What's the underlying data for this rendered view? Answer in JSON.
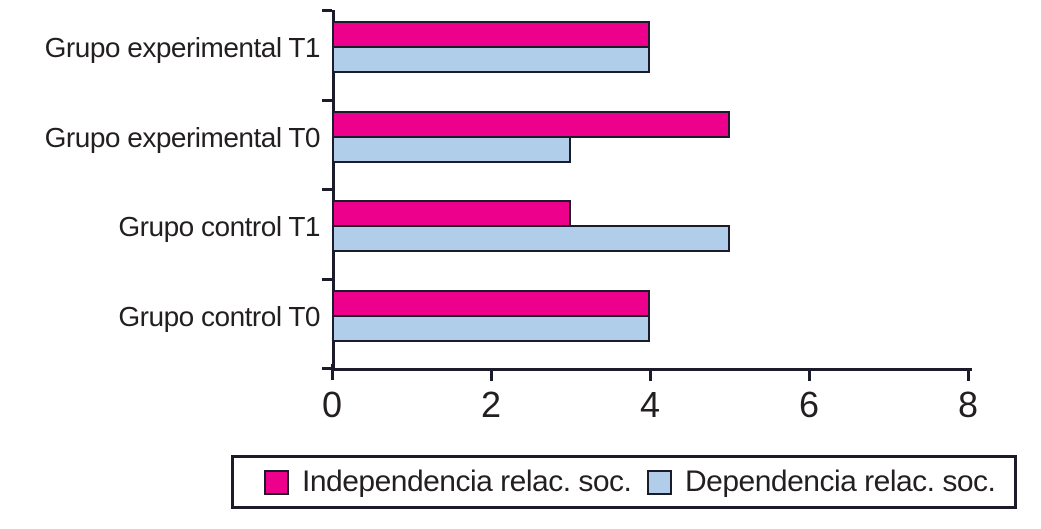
{
  "chart_data": {
    "type": "bar",
    "orientation": "horizontal",
    "title": "",
    "xlabel": "",
    "ylabel": "",
    "categories": [
      "Grupo experimental T1",
      "Grupo experimental T0",
      "Grupo control T1",
      "Grupo control T0"
    ],
    "series": [
      {
        "name": "Independencia relac. soc.",
        "color": "#EC008C",
        "values": [
          4,
          5,
          3,
          4
        ]
      },
      {
        "name": "Dependencia relac. soc.",
        "color": "#B0CEE9",
        "values": [
          4,
          3,
          5,
          4
        ]
      }
    ],
    "xlim": [
      0,
      8
    ],
    "x_ticks": [
      "0",
      "2",
      "4",
      "6",
      "8"
    ],
    "grid": false,
    "legend_position": "bottom",
    "bar_outline_color": "#1B1B2B",
    "axis_color": "#1B1B2B",
    "text_color": "#231F20",
    "background": "#FFFFFF"
  }
}
